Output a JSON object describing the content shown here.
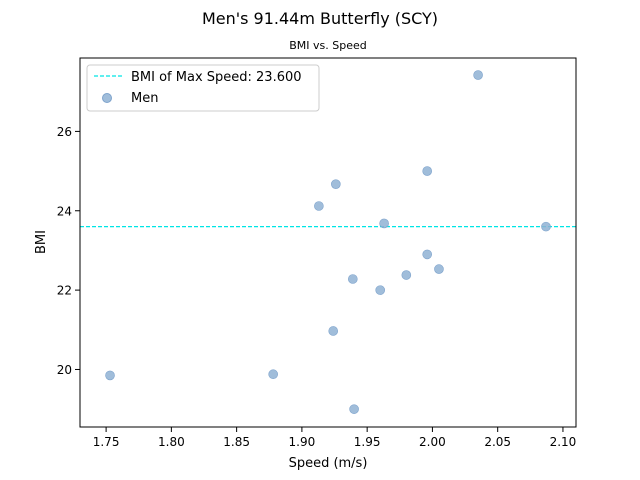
{
  "chart_data": {
    "type": "scatter",
    "title": "Men's 91.44m Butterfly (SCY)",
    "subtitle": "BMI vs. Speed",
    "xlabel": "Speed (m/s)",
    "ylabel": "BMI",
    "xlim": [
      1.73,
      2.11
    ],
    "ylim": [
      18.55,
      27.85
    ],
    "xticks": [
      1.75,
      1.8,
      1.85,
      1.9,
      1.95,
      2.0,
      2.05,
      2.1
    ],
    "xtick_labels": [
      "1.75",
      "1.80",
      "1.85",
      "1.90",
      "1.95",
      "2.00",
      "2.05",
      "2.10"
    ],
    "yticks": [
      20,
      22,
      24,
      26
    ],
    "ytick_labels": [
      "20",
      "22",
      "24",
      "26"
    ],
    "grid": false,
    "legend_position": "top-left",
    "series": [
      {
        "name": "Men",
        "color": "#8fb1d4",
        "x": [
          1.753,
          1.878,
          1.913,
          1.924,
          1.926,
          1.939,
          1.94,
          1.96,
          1.963,
          1.98,
          1.996,
          1.996,
          2.005,
          2.035,
          2.087
        ],
        "y": [
          19.85,
          19.88,
          24.12,
          20.97,
          24.67,
          22.28,
          19.0,
          22.0,
          23.68,
          22.38,
          22.9,
          25.0,
          22.53,
          27.42,
          23.6
        ]
      }
    ],
    "reference_lines": [
      {
        "orientation": "horizontal",
        "y": 23.6,
        "label": "BMI of Max Speed: 23.600",
        "color": "#00e5e5",
        "style": "dashed"
      }
    ]
  }
}
